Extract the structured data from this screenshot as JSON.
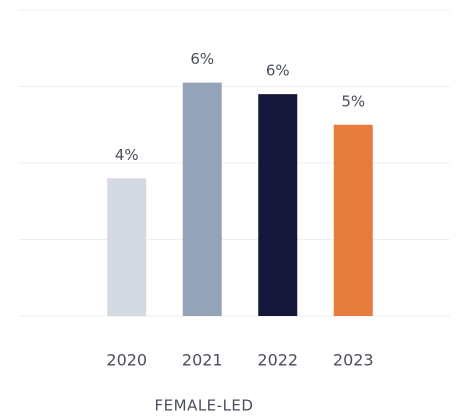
{
  "chart_data": {
    "type": "bar",
    "categories": [
      "2020",
      "2021",
      "2022",
      "2023"
    ],
    "values": [
      3.6,
      6.1,
      5.8,
      5.0
    ],
    "value_labels": [
      "4%",
      "6%",
      "6%",
      "5%"
    ],
    "colors": [
      "#d5d9e2",
      "#95a3b9",
      "#14163a",
      "#e57c3c"
    ],
    "xlabel": "FEMALE-LED",
    "ylim": [
      0,
      8
    ],
    "yticks": [
      0,
      2,
      4,
      6,
      8
    ],
    "grid": true
  }
}
